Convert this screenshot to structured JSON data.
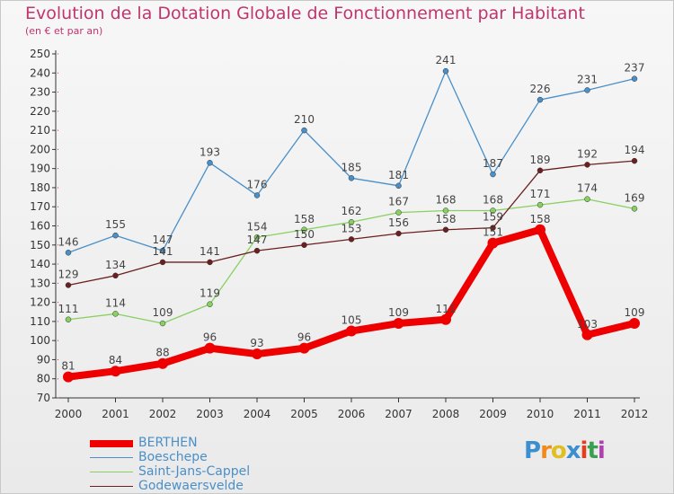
{
  "header": {
    "title": "Evolution de la Dotation Globale de Fonctionnement par Habitant",
    "subtitle": "(en € et par an)"
  },
  "colors": {
    "title": "#c0356c",
    "axis": "#333333",
    "grid_dot": "#cc3355",
    "BERTHEN": "#ee0000",
    "Boeschepe": "#4a8fc8",
    "Saint-Jans-Cappel": "#88d060",
    "Godewaersvelde": "#6b1f1f"
  },
  "logo": {
    "letters": [
      "P",
      "r",
      "o",
      "x",
      "i",
      "t",
      "i"
    ],
    "colors": [
      "#3a8fd0",
      "#f08a1a",
      "#e0c020",
      "#3a8fd0",
      "#e04020",
      "#3aa050",
      "#b040b0"
    ]
  },
  "chart_data": {
    "type": "line",
    "title": "Evolution de la Dotation Globale de Fonctionnement par Habitant",
    "subtitle": "(en € et par an)",
    "xlabel": "",
    "ylabel": "",
    "x": [
      "2000",
      "2001",
      "2002",
      "2003",
      "2004",
      "2005",
      "2006",
      "2007",
      "2008",
      "2009",
      "2010",
      "2011",
      "2012"
    ],
    "ylim": [
      70,
      250
    ],
    "yticks": [
      70,
      80,
      90,
      100,
      110,
      120,
      130,
      140,
      150,
      160,
      170,
      180,
      190,
      200,
      210,
      220,
      230,
      240,
      250
    ],
    "grid": false,
    "legend": "bottom-left",
    "series": [
      {
        "name": "BERTHEN",
        "values": [
          81,
          84,
          88,
          96,
          93,
          96,
          105,
          109,
          111,
          151,
          158,
          103,
          109
        ]
      },
      {
        "name": "Boeschepe",
        "values": [
          146,
          155,
          147,
          193,
          176,
          210,
          185,
          181,
          241,
          187,
          226,
          231,
          237
        ]
      },
      {
        "name": "Saint-Jans-Cappel",
        "values": [
          111,
          114,
          109,
          119,
          154,
          158,
          162,
          167,
          168,
          168,
          171,
          174,
          169
        ]
      },
      {
        "name": "Godewaersvelde",
        "values": [
          129,
          134,
          141,
          141,
          147,
          150,
          153,
          156,
          158,
          159,
          189,
          192,
          194
        ]
      }
    ]
  }
}
